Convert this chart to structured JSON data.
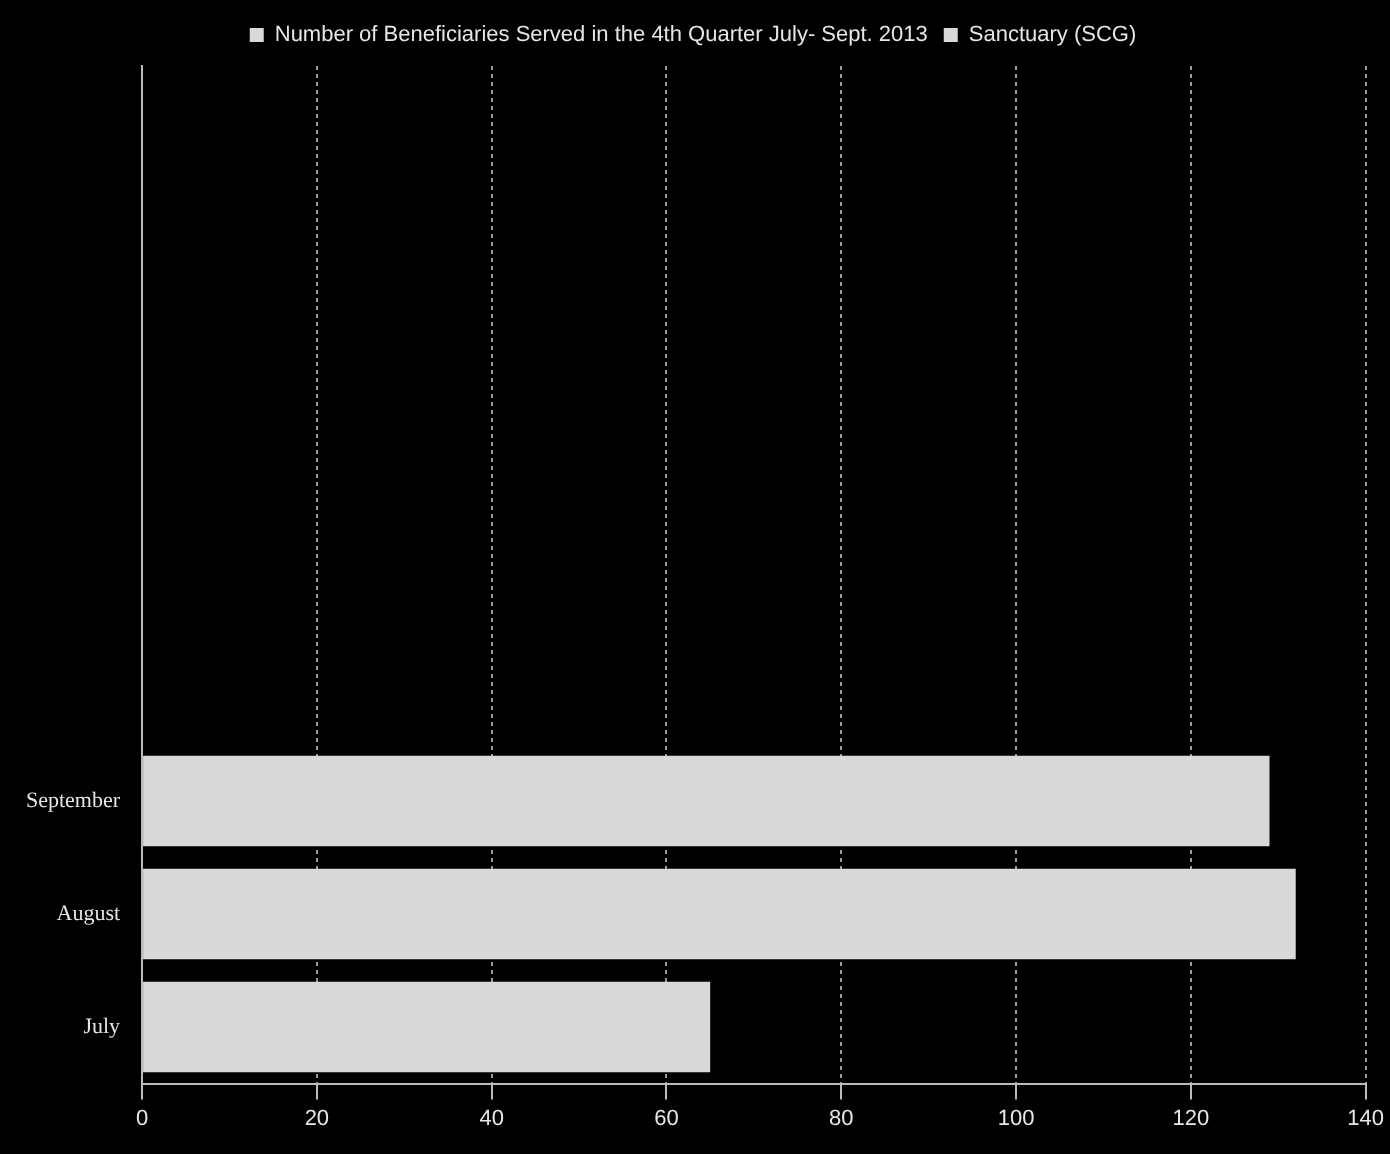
{
  "chart_data": {
    "type": "bar",
    "orientation": "horizontal",
    "categories": [
      null,
      null,
      null,
      null,
      null,
      null,
      "September",
      "August",
      "July"
    ],
    "series": [
      {
        "name": "Number of Beneficiaries Served in the 4th Quarter July- Sept. 2013",
        "color": "#d9d9d9",
        "values": [
          null,
          null,
          null,
          null,
          null,
          null,
          null,
          null,
          null
        ]
      },
      {
        "name": "Sanctuary (SCG)",
        "color": "#d9d9d9",
        "values": [
          null,
          null,
          null,
          null,
          null,
          null,
          129,
          132,
          65
        ]
      }
    ],
    "xlim": [
      0,
      140
    ],
    "xticks": [
      0,
      20,
      40,
      60,
      80,
      100,
      120,
      140
    ],
    "grid": "x",
    "legend": "top"
  }
}
